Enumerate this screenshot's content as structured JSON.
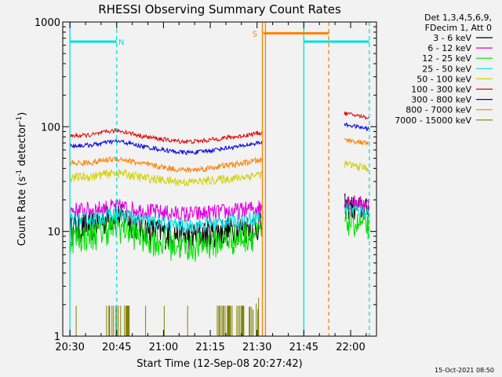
{
  "chart_data": {
    "type": "line",
    "title": "RHESSI Observing Summary Count Rates",
    "xlabel": "Start Time (12-Sep-08 20:27:42)",
    "ylabel": "Count Rate (s⁻¹ detector⁻¹)",
    "ylabel_parts": {
      "main": "Count Rate (s",
      "exp1": "-1",
      "mid": " detector",
      "exp2": "-1",
      "end": ")"
    },
    "y_scale": "log",
    "ylim": [
      1,
      1000
    ],
    "xlim_minutes": [
      -2.3,
      98.3
    ],
    "x_reference": "20:30 = minute 0",
    "x_ticks": [
      {
        "minute": 0,
        "label": "20:30"
      },
      {
        "minute": 15,
        "label": "20:45"
      },
      {
        "minute": 30,
        "label": "21:00"
      },
      {
        "minute": 45,
        "label": "21:15"
      },
      {
        "minute": 60,
        "label": "21:30"
      },
      {
        "minute": 75,
        "label": "21:45"
      },
      {
        "minute": 90,
        "label": "22:00"
      }
    ],
    "y_ticks": [
      {
        "value": 1,
        "label": "1"
      },
      {
        "value": 10,
        "label": "10"
      },
      {
        "value": 100,
        "label": "100"
      },
      {
        "value": 1000,
        "label": "1000"
      }
    ],
    "legend_header": [
      "Det 1,3,4,5,6,9,",
      "FDecim 1, Att 0"
    ],
    "series": [
      {
        "name": "3 - 6 keV",
        "color": "#000000",
        "ref": 11,
        "post": 17,
        "noise": 0.2,
        "hump": 1.3,
        "dip": 0.85
      },
      {
        "name": "6 - 12 keV",
        "color": "#e000e0",
        "ref": 16,
        "post": 19,
        "noise": 0.12,
        "hump": 1.08,
        "dip": 0.92
      },
      {
        "name": "12 - 25 keV",
        "color": "#00e000",
        "ref": 9,
        "post": 12,
        "noise": 0.2,
        "hump": 1.25,
        "dip": 0.82
      },
      {
        "name": "25 - 50 keV",
        "color": "#00e0e0",
        "ref": 13,
        "post": 16,
        "noise": 0.1,
        "hump": 1.12,
        "dip": 0.88
      },
      {
        "name": "50 - 100 keV",
        "color": "#d0d000",
        "ref": 33,
        "post": 42,
        "noise": 0.06,
        "hump": 1.1,
        "dip": 0.9
      },
      {
        "name": "100 - 300 keV",
        "color": "#e00000",
        "ref": 82,
        "post": 128,
        "noise": 0.03,
        "hump": 1.12,
        "dip": 0.88
      },
      {
        "name": "300 - 800 keV",
        "color": "#0000e0",
        "ref": 66,
        "post": 100,
        "noise": 0.03,
        "hump": 1.1,
        "dip": 0.86
      },
      {
        "name": "800 - 7000 keV",
        "color": "#ff8000",
        "ref": 45,
        "post": 72,
        "noise": 0.04,
        "hump": 1.1,
        "dip": 0.86
      },
      {
        "name": "7000 - 15000 keV",
        "color": "#808000",
        "ref": 1,
        "post": null,
        "noise": 0,
        "hump": 1,
        "dip": 1
      }
    ],
    "data_segments": [
      [
        0,
        62
      ],
      [
        88,
        96
      ]
    ],
    "flags": [
      {
        "label": "N",
        "color": "#00e0e0",
        "intervals": [
          [
            0,
            15
          ],
          [
            75,
            96
          ]
        ],
        "level": 650,
        "label_at": 16.5
      },
      {
        "label": "S",
        "color": "#ff8000",
        "intervals": [
          [
            62,
            83
          ]
        ],
        "level": 780,
        "label_at": 59.3
      }
    ],
    "markers": [
      {
        "minute": 0,
        "color": "#00e0e0",
        "style": "solid"
      },
      {
        "minute": 15,
        "color": "#00e0e0",
        "style": "dashed"
      },
      {
        "minute": 61.7,
        "color": "#ff8000",
        "style": "solid"
      },
      {
        "minute": 62.7,
        "color": "#ff8000",
        "style": "solid"
      },
      {
        "minute": 75,
        "color": "#00e0e0",
        "style": "solid"
      },
      {
        "minute": 83,
        "color": "#ff8000",
        "style": "dashed"
      },
      {
        "minute": 96,
        "color": "#00e0e0",
        "style": "dashed"
      }
    ]
  },
  "footer": {
    "timestamp": "15-Oct-2021 08:50"
  }
}
